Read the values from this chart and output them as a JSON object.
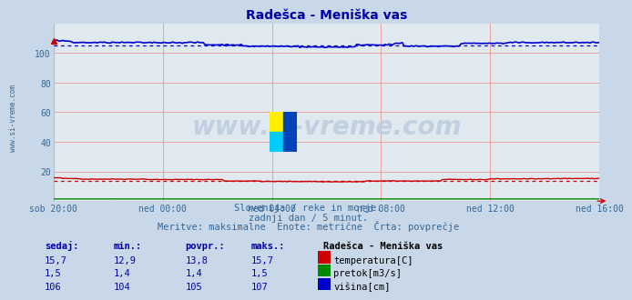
{
  "title": "Radešca - Meniška vas",
  "background_color": "#c8d8e8",
  "plot_bg_color": "#e0e8f0",
  "grid_color": "#e8a0a0",
  "x_tick_labels": [
    "sob 20:00",
    "ned 00:00",
    "ned 04:00",
    "ned 08:00",
    "ned 12:00",
    "ned 16:00"
  ],
  "x_tick_positions": [
    0,
    48,
    96,
    144,
    192,
    240
  ],
  "n_points": 289,
  "ylim": [
    0,
    120
  ],
  "yticks": [
    20,
    40,
    60,
    80,
    100
  ],
  "temp_color": "#cc0000",
  "pretok_color": "#008800",
  "visina_color": "#0000cc",
  "watermark_text": "www.si-vreme.com",
  "sidebar_text": "www.si-vreme.com",
  "subtitle1": "Slovenija / reke in morje.",
  "subtitle2": "zadnji dan / 5 minut.",
  "subtitle3": "Meritve: maksimalne  Enote: metrične  Črta: povprečje",
  "table_headers": [
    "sedaj:",
    "min.:",
    "povpr.:",
    "maks.:"
  ],
  "table_label": "Radešca - Meniška vas",
  "table_rows": [
    {
      "values": [
        "15,7",
        "12,9",
        "13,8",
        "15,7"
      ],
      "label": "temperatura[C]",
      "color": "#cc0000"
    },
    {
      "values": [
        "1,5",
        "1,4",
        "1,4",
        "1,5"
      ],
      "label": "pretok[m3/s]",
      "color": "#008800"
    },
    {
      "values": [
        "106",
        "104",
        "105",
        "107"
      ],
      "label": "višina[cm]",
      "color": "#0000cc"
    }
  ],
  "temp_avg": 13.8,
  "pretok_avg": 1.4,
  "visina_avg": 105
}
